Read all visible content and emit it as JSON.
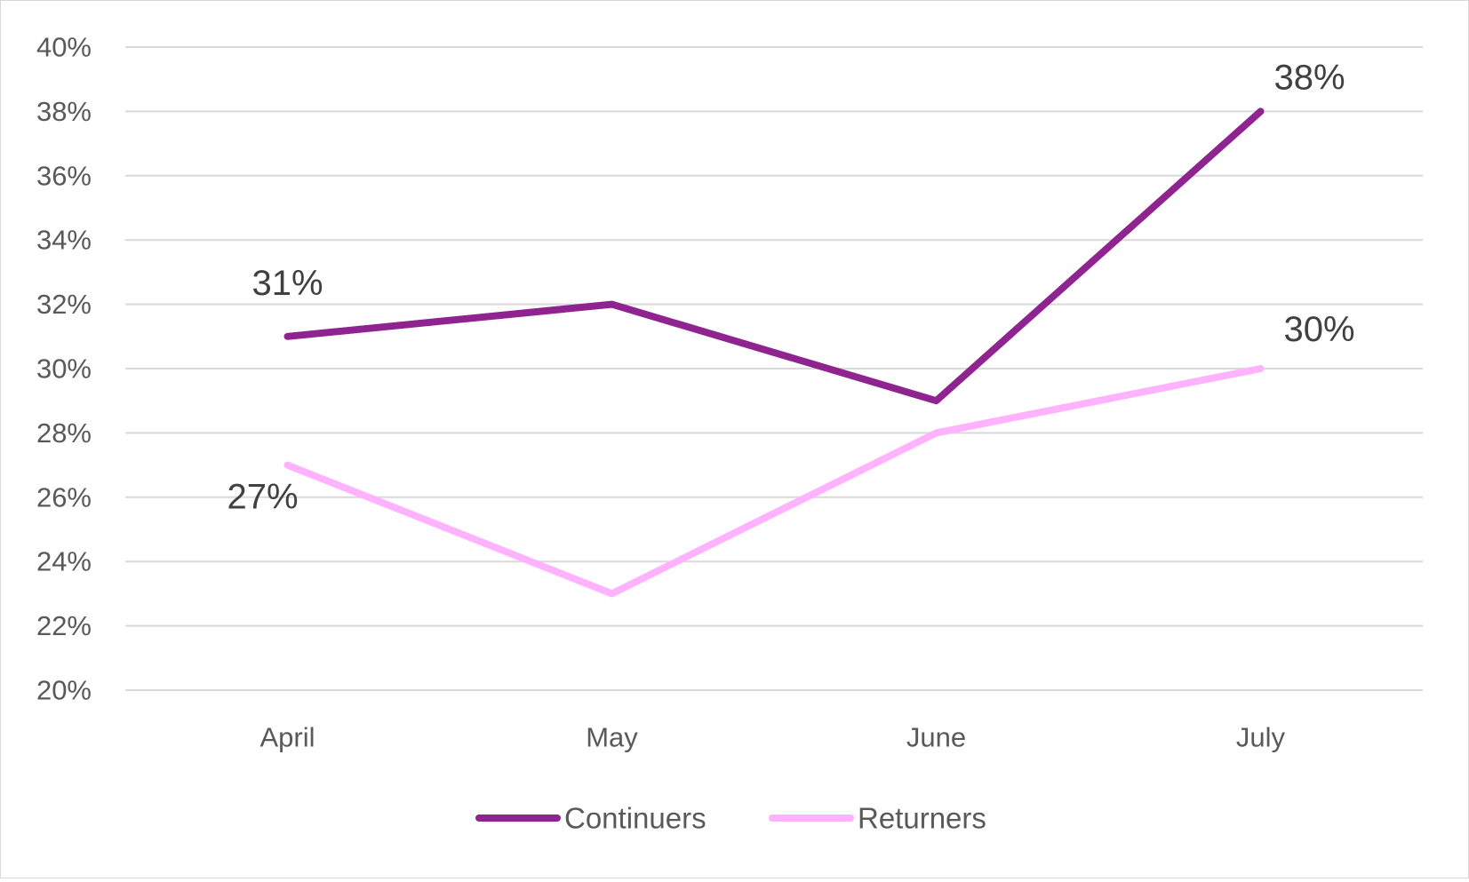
{
  "chart_data": {
    "type": "line",
    "categories": [
      "April",
      "May",
      "June",
      "July"
    ],
    "series": [
      {
        "name": "Continuers",
        "values": [
          31,
          32,
          29,
          38
        ],
        "color": "#8f2491",
        "data_labels": {
          "0": "31%",
          "3": "38%"
        }
      },
      {
        "name": "Returners",
        "values": [
          27,
          23,
          28,
          30
        ],
        "color": "#ffb3ff",
        "data_labels": {
          "0": "27%",
          "3": "30%"
        }
      }
    ],
    "ylim": [
      20,
      40
    ],
    "y_ticks": [
      "20%",
      "22%",
      "24%",
      "26%",
      "28%",
      "30%",
      "32%",
      "34%",
      "36%",
      "38%",
      "40%"
    ],
    "gridlines": true,
    "gridline_color": "#d9d9d9",
    "legend_position": "bottom",
    "title": "",
    "xlabel": "",
    "ylabel": ""
  }
}
